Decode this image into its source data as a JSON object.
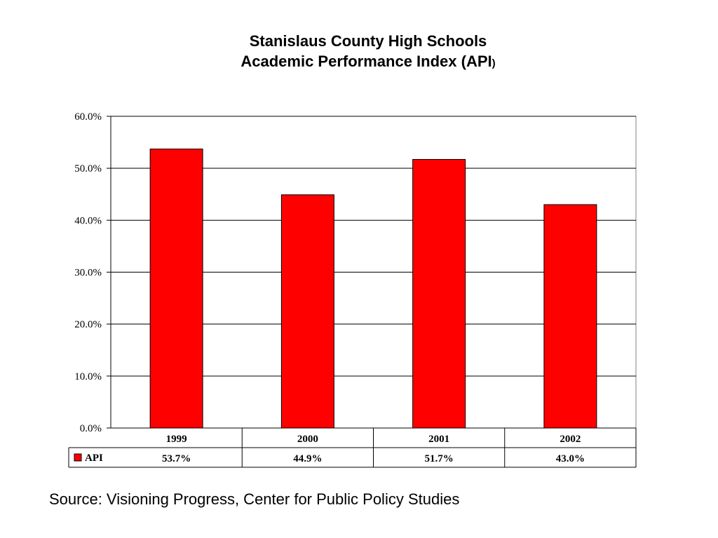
{
  "title": {
    "line1": "Stanislaus County High Schools",
    "line2_main": "Academic Performance Index (API",
    "line2_paren": ")"
  },
  "source": "Source: Visioning Progress, Center for Public Policy Studies",
  "colors": {
    "bar": "#ff0000",
    "grid": "#000000",
    "background": "#ffffff"
  },
  "chart_data": {
    "type": "bar",
    "title": "Stanislaus County High Schools Academic Performance Index (API)",
    "categories": [
      "1999",
      "2000",
      "2001",
      "2002"
    ],
    "series": [
      {
        "name": "API",
        "values": [
          53.7,
          44.9,
          51.7,
          43.0
        ],
        "labels": [
          "53.7%",
          "44.9%",
          "51.7%",
          "43.0%"
        ]
      }
    ],
    "ylim": [
      0,
      60
    ],
    "yticks": [
      0,
      10,
      20,
      30,
      40,
      50,
      60
    ],
    "ytick_labels": [
      "0.0%",
      "10.0%",
      "20.0%",
      "30.0%",
      "40.0%",
      "50.0%",
      "60.0%"
    ],
    "grid": true,
    "data_table": true,
    "legend": "data-table-key"
  }
}
